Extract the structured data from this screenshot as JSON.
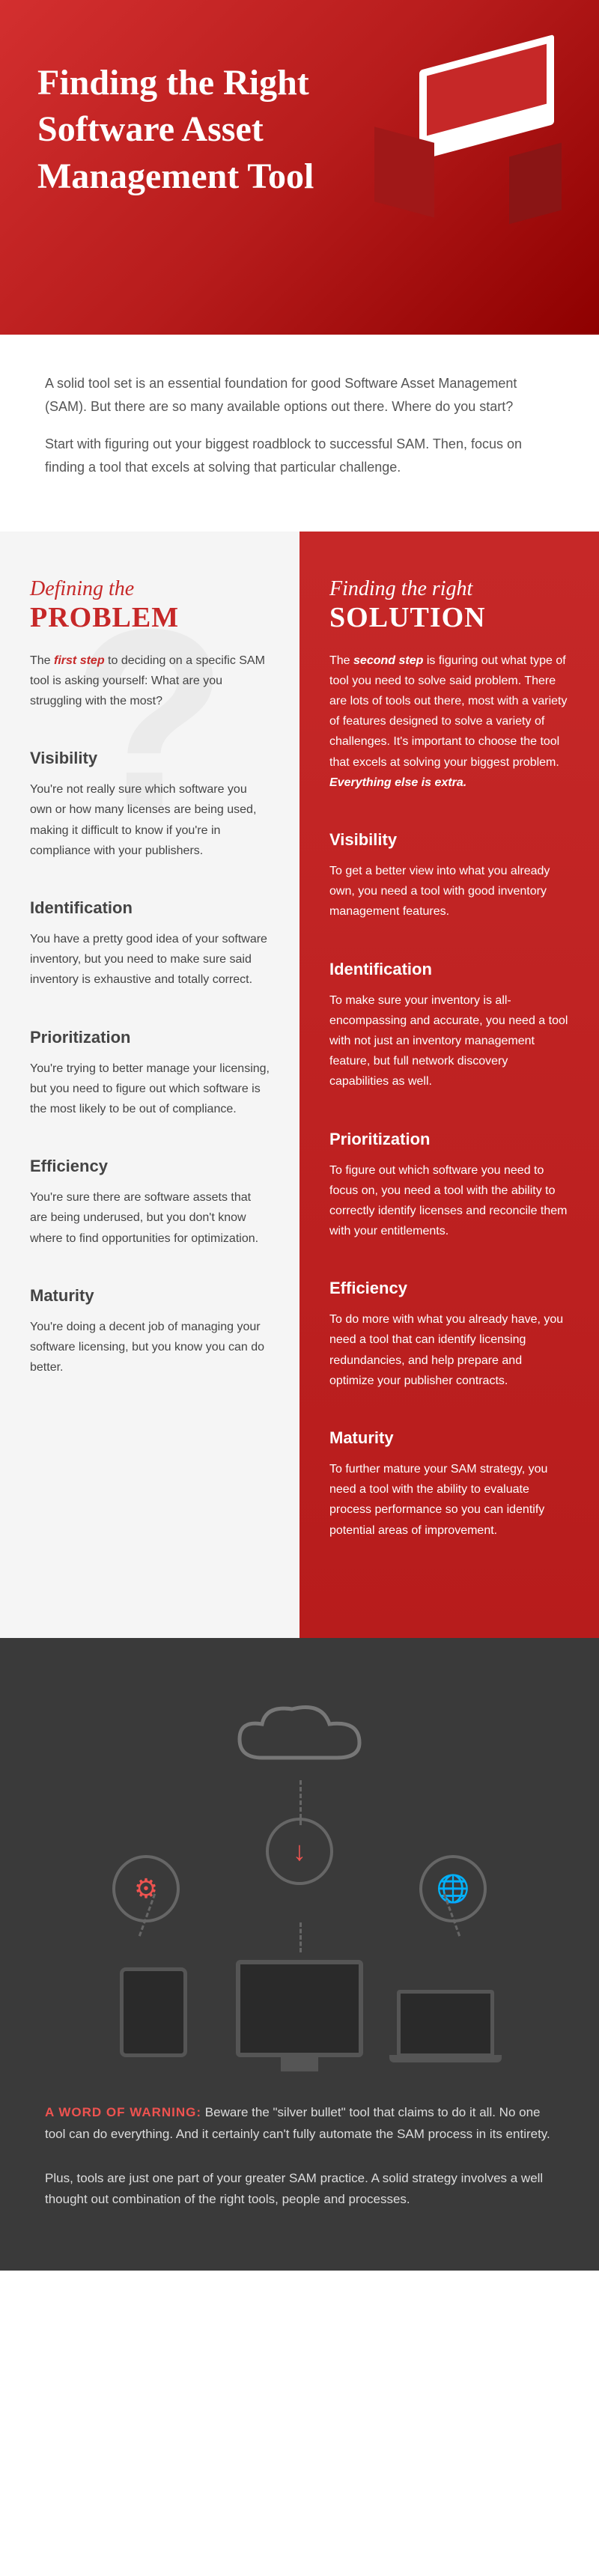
{
  "hero": {
    "title": "Finding the Right Software Asset Management Tool"
  },
  "intro": {
    "p1": "A solid tool set is an essential foundation for good Software Asset Management (SAM). But there are so many available options out there. Where do you start?",
    "p2": "Start with figuring out your biggest roadblock to successful SAM. Then, focus on finding a tool that excels at solving that particular challenge."
  },
  "left": {
    "head_line1": "Defining the",
    "head_line2": "PROBLEM",
    "lead_prefix": "The ",
    "lead_em": "first step",
    "lead_rest": " to deciding on a specific SAM tool is asking yourself: What are you struggling with the most?",
    "items": [
      {
        "title": "Visibility",
        "body": "You're not really sure which software you own or how many licenses are being used, making it difficult to know if you're in compliance with your publishers."
      },
      {
        "title": "Identification",
        "body": "You have a pretty good idea of your software inventory, but you need to make sure said inventory is exhaustive and totally correct."
      },
      {
        "title": "Prioritization",
        "body": "You're trying to better manage your licensing, but you need to figure out which software is the most likely to be out of compliance."
      },
      {
        "title": "Efficiency",
        "body": "You're sure there are software assets that are being underused, but you don't know where to find opportunities for optimization."
      },
      {
        "title": "Maturity",
        "body": "You're doing a decent job of managing your software licensing, but you know you can do better."
      }
    ]
  },
  "right": {
    "head_line1": "Finding the right",
    "head_line2": "SOLUTION",
    "lead_prefix": "The ",
    "lead_em": "second step",
    "lead_rest": " is figuring out what type of tool you need to solve said problem. There are lots of tools out there, most with a variety of features designed to solve a variety of challenges. It's important to choose the tool that excels at solving your biggest problem. ",
    "lead_tail_em": "Everything else is extra.",
    "items": [
      {
        "title": "Visibility",
        "body": "To get a better view into what you already own, you need a tool with good inventory management features."
      },
      {
        "title": "Identification",
        "body": "To make sure your inventory is all-encompassing and accurate, you need a tool with not just an inventory management feature, but full network discovery capabilities as well."
      },
      {
        "title": "Prioritization",
        "body": "To figure out which software you need to focus on, you need a tool with the ability to correctly identify licenses and reconcile them with your entitlements."
      },
      {
        "title": "Efficiency",
        "body": "To do more with what you already have, you need a tool that can identify licensing redundancies, and help prepare and optimize your publisher contracts."
      },
      {
        "title": "Maturity",
        "body": "To further mature your SAM strategy, you need a tool with the ability to evaluate process performance so you can identify potential areas of improvement."
      }
    ]
  },
  "footer": {
    "warning_label": "A WORD OF WARNING:",
    "warning_body": " Beware the \"silver bullet\" tool that claims to do it all. No one tool can do everything. And it certainly can't fully automate the SAM process in its entirety.",
    "note": "Plus, tools are just one part of your greater SAM practice. A solid strategy involves a well thought out combination of the right tools, people and processes."
  },
  "colors": {
    "accent": "#c62828",
    "dark_bg": "#3a3a3a",
    "warning": "#ef5350"
  }
}
